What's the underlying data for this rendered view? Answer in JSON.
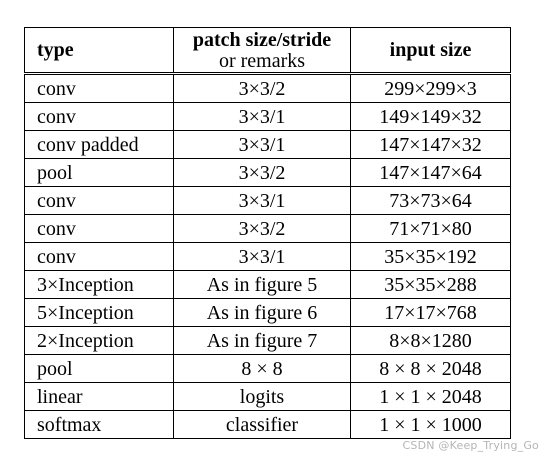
{
  "table": {
    "headers": {
      "type": "type",
      "patch_line1": "patch size/stride",
      "patch_line2": "or remarks",
      "input_size": "input size"
    },
    "rows": [
      {
        "type": "conv",
        "patch": "3×3/2",
        "input": "299×299×3"
      },
      {
        "type": "conv",
        "patch": "3×3/1",
        "input": "149×149×32"
      },
      {
        "type": "conv padded",
        "patch": "3×3/1",
        "input": "147×147×32"
      },
      {
        "type": "pool",
        "patch": "3×3/2",
        "input": "147×147×64"
      },
      {
        "type": "conv",
        "patch": "3×3/1",
        "input": "73×73×64"
      },
      {
        "type": "conv",
        "patch": "3×3/2",
        "input": "71×71×80"
      },
      {
        "type": "conv",
        "patch": "3×3/1",
        "input": "35×35×192"
      },
      {
        "type": "3×Inception",
        "patch": "As in figure 5",
        "input": "35×35×288"
      },
      {
        "type": "5×Inception",
        "patch": "As in figure 6",
        "input": "17×17×768"
      },
      {
        "type": "2×Inception",
        "patch": "As in figure 7",
        "input": "8×8×1280"
      },
      {
        "type": "pool",
        "patch": "8 × 8",
        "input": "8 × 8 × 2048"
      },
      {
        "type": "linear",
        "patch": "logits",
        "input": "1 × 1 × 2048"
      },
      {
        "type": "softmax",
        "patch": "classifier",
        "input": "1 × 1 × 1000"
      }
    ]
  },
  "watermark": "CSDN @Keep_Trying_Go"
}
